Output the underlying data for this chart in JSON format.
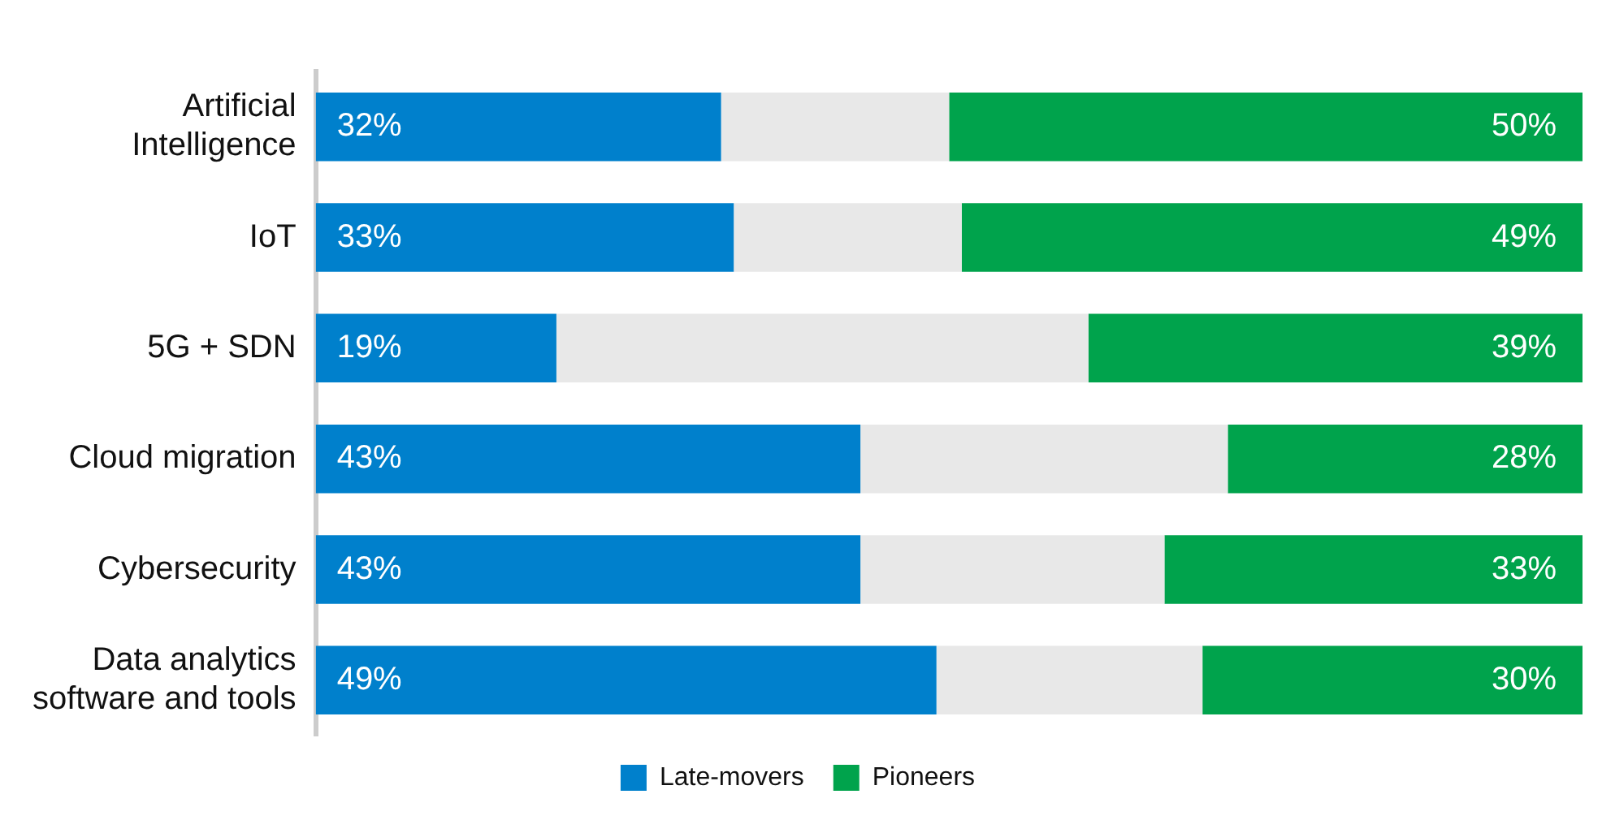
{
  "chart_data": {
    "type": "bar",
    "orientation": "horizontal",
    "stacked": true,
    "categories": [
      "Artificial Intelligence",
      "IoT",
      "5G + SDN",
      "Cloud migration",
      "Cybersecurity",
      "Data analytics software and tools"
    ],
    "series": [
      {
        "name": "Late-movers",
        "color": "#0080cc",
        "values": [
          32,
          33,
          19,
          43,
          43,
          49
        ],
        "value_labels": [
          "32%",
          "33%",
          "19%",
          "43%",
          "43%",
          "49%"
        ]
      },
      {
        "color": "#e8e8e8",
        "values": [
          18,
          18,
          42,
          29,
          24,
          21
        ]
      },
      {
        "name": "Pioneers",
        "color": "#00a34c",
        "values": [
          50,
          49,
          39,
          28,
          33,
          30
        ],
        "value_labels": [
          "50%",
          "49%",
          "39%",
          "28%",
          "33%",
          "30%"
        ]
      }
    ],
    "xlim": [
      0,
      100
    ],
    "tick_labels": "y",
    "legend": "bottom"
  }
}
